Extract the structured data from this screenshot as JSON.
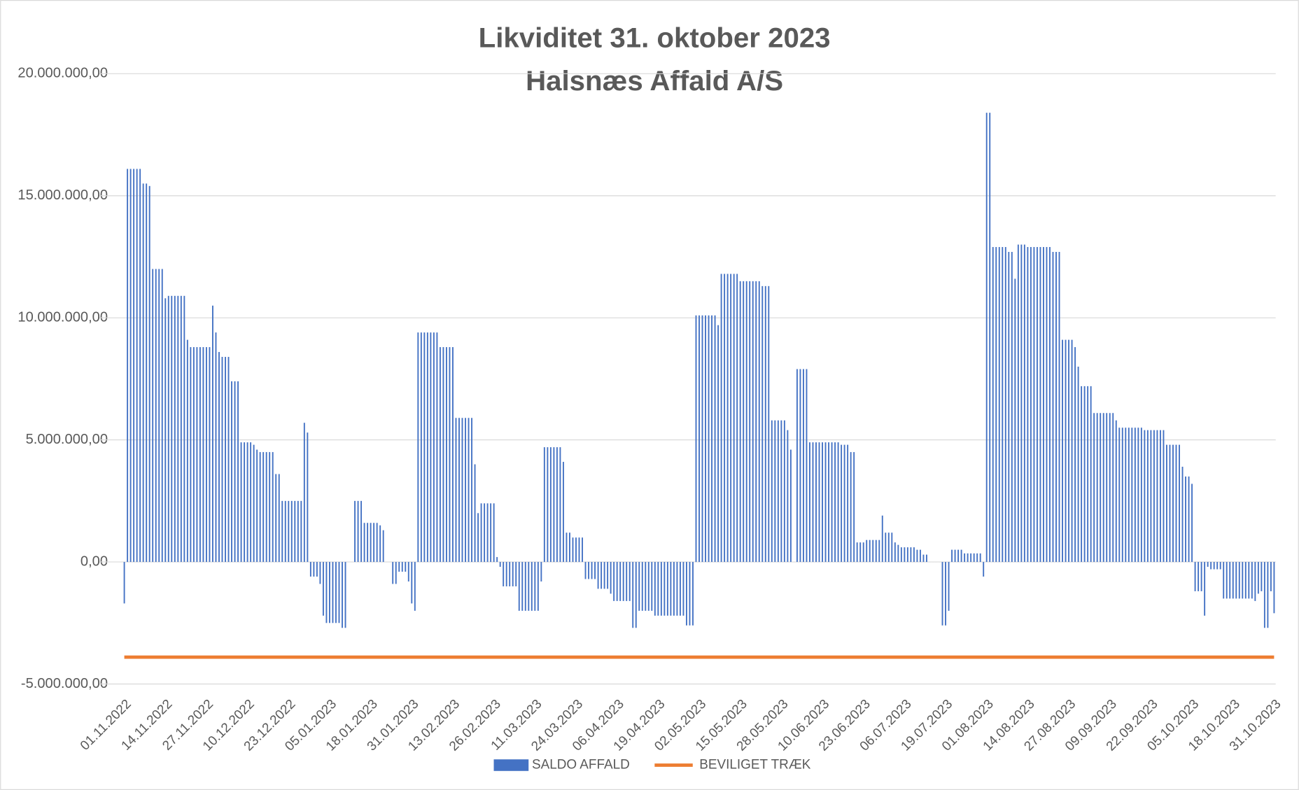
{
  "chart_data": {
    "type": "bar",
    "title": "Likviditet 31. oktober 2023",
    "subtitle": "Halsnæs Affald A/S",
    "categories": [
      "01.11.2022",
      null,
      null,
      null,
      null,
      null,
      null,
      null,
      null,
      null,
      null,
      null,
      null,
      "14.11.2022",
      null,
      null,
      null,
      null,
      null,
      null,
      null,
      null,
      null,
      null,
      null,
      null,
      "27.11.2022",
      null,
      null,
      null,
      null,
      null,
      null,
      null,
      null,
      null,
      null,
      null,
      null,
      "10.12.2022",
      null,
      null,
      null,
      null,
      null,
      null,
      null,
      null,
      null,
      null,
      null,
      null,
      "23.12.2022",
      null,
      null,
      null,
      null,
      null,
      null,
      null,
      null,
      null,
      null,
      null,
      null,
      "05.01.2023",
      null,
      null,
      null,
      null,
      null,
      null,
      null,
      null,
      null,
      null,
      null,
      null,
      "18.01.2023",
      null,
      null,
      null,
      null,
      null,
      null,
      null,
      null,
      null,
      null,
      null,
      null,
      "31.01.2023",
      null,
      null,
      null,
      null,
      null,
      null,
      null,
      null,
      null,
      null,
      null,
      null,
      "13.02.2023",
      null,
      null,
      null,
      null,
      null,
      null,
      null,
      null,
      null,
      null,
      null,
      null,
      "26.02.2023",
      null,
      null,
      null,
      null,
      null,
      null,
      null,
      null,
      null,
      null,
      null,
      null,
      "11.03.2023",
      null,
      null,
      null,
      null,
      null,
      null,
      null,
      null,
      null,
      null,
      null,
      null,
      "24.03.2023",
      null,
      null,
      null,
      null,
      null,
      null,
      null,
      null,
      null,
      null,
      null,
      null,
      "06.04.2023",
      null,
      null,
      null,
      null,
      null,
      null,
      null,
      null,
      null,
      null,
      null,
      null,
      "19.04.2023",
      null,
      null,
      null,
      null,
      null,
      null,
      null,
      null,
      null,
      null,
      null,
      null,
      "02.05.2023",
      null,
      null,
      null,
      null,
      null,
      null,
      null,
      null,
      null,
      null,
      null,
      null,
      "15.05.2023",
      null,
      null,
      null,
      null,
      null,
      null,
      null,
      null,
      null,
      null,
      null,
      null,
      "28.05.2023",
      null,
      null,
      null,
      null,
      null,
      null,
      null,
      null,
      null,
      null,
      null,
      null,
      "10.06.2023",
      null,
      null,
      null,
      null,
      null,
      null,
      null,
      null,
      null,
      null,
      null,
      null,
      "23.06.2023",
      null,
      null,
      null,
      null,
      null,
      null,
      null,
      null,
      null,
      null,
      null,
      null,
      "06.07.2023",
      null,
      null,
      null,
      null,
      null,
      null,
      null,
      null,
      null,
      null,
      null,
      null,
      "19.07.2023",
      null,
      null,
      null,
      null,
      null,
      null,
      null,
      null,
      null,
      null,
      null,
      null,
      "01.08.2023",
      null,
      null,
      null,
      null,
      null,
      null,
      null,
      null,
      null,
      null,
      null,
      null,
      "14.08.2023",
      null,
      null,
      null,
      null,
      null,
      null,
      null,
      null,
      null,
      null,
      null,
      null,
      "27.08.2023",
      null,
      null,
      null,
      null,
      null,
      null,
      null,
      null,
      null,
      null,
      null,
      null,
      "09.09.2023",
      null,
      null,
      null,
      null,
      null,
      null,
      null,
      null,
      null,
      null,
      null,
      null,
      "22.09.2023",
      null,
      null,
      null,
      null,
      null,
      null,
      null,
      null,
      null,
      null,
      null,
      null,
      "05.10.2023",
      null,
      null,
      null,
      null,
      null,
      null,
      null,
      null,
      null,
      null,
      null,
      null,
      "18.10.2023",
      null,
      null,
      null,
      null,
      null,
      null,
      null,
      null,
      null,
      null,
      null,
      null,
      "31.10.2023"
    ],
    "series": [
      {
        "name": "SALDO AFFALD",
        "color": "#4472c4",
        "values": [
          -1700000,
          16100000,
          16100000,
          16100000,
          16100000,
          16100000,
          15500000,
          15500000,
          15400000,
          12000000,
          12000000,
          12000000,
          12000000,
          10800000,
          10900000,
          10900000,
          10900000,
          10900000,
          10900000,
          10900000,
          9100000,
          8800000,
          8800000,
          8800000,
          8800000,
          8800000,
          8800000,
          8800000,
          10500000,
          9400000,
          8600000,
          8400000,
          8400000,
          8400000,
          7400000,
          7400000,
          7400000,
          4900000,
          4900000,
          4900000,
          4900000,
          4800000,
          4600000,
          4500000,
          4500000,
          4500000,
          4500000,
          4500000,
          3600000,
          3600000,
          2500000,
          2500000,
          2500000,
          2500000,
          2500000,
          2500000,
          2500000,
          5700000,
          5300000,
          -600000,
          -600000,
          -600000,
          -900000,
          -2200000,
          -2500000,
          -2500000,
          -2500000,
          -2500000,
          -2500000,
          -2700000,
          -2700000,
          0,
          0,
          2500000,
          2500000,
          2500000,
          1600000,
          1600000,
          1600000,
          1600000,
          1600000,
          1500000,
          1300000,
          0,
          0,
          -900000,
          -900000,
          -400000,
          -400000,
          -400000,
          -800000,
          -1700000,
          -2000000,
          9400000,
          9400000,
          9400000,
          9400000,
          9400000,
          9400000,
          9400000,
          8800000,
          8800000,
          8800000,
          8800000,
          8800000,
          5900000,
          5900000,
          5900000,
          5900000,
          5900000,
          5900000,
          4000000,
          2000000,
          2400000,
          2400000,
          2400000,
          2400000,
          2400000,
          200000,
          -200000,
          -1000000,
          -1000000,
          -1000000,
          -1000000,
          -1000000,
          -2000000,
          -2000000,
          -2000000,
          -2000000,
          -2000000,
          -2000000,
          -2000000,
          -800000,
          4700000,
          4700000,
          4700000,
          4700000,
          4700000,
          4700000,
          4100000,
          1200000,
          1200000,
          1000000,
          1000000,
          1000000,
          1000000,
          -700000,
          -700000,
          -700000,
          -700000,
          -1100000,
          -1100000,
          -1100000,
          -1100000,
          -1300000,
          -1600000,
          -1600000,
          -1600000,
          -1600000,
          -1600000,
          -1600000,
          -2700000,
          -2700000,
          -2000000,
          -2000000,
          -2000000,
          -2000000,
          -2000000,
          -2200000,
          -2200000,
          -2200000,
          -2200000,
          -2200000,
          -2200000,
          -2200000,
          -2200000,
          -2200000,
          -2200000,
          -2600000,
          -2600000,
          -2600000,
          10100000,
          10100000,
          10100000,
          10100000,
          10100000,
          10100000,
          10100000,
          9700000,
          11800000,
          11800000,
          11800000,
          11800000,
          11800000,
          11800000,
          11500000,
          11500000,
          11500000,
          11500000,
          11500000,
          11500000,
          11500000,
          11300000,
          11300000,
          11300000,
          5800000,
          5800000,
          5800000,
          5800000,
          5800000,
          5400000,
          4600000,
          0,
          7900000,
          7900000,
          7900000,
          7900000,
          4900000,
          4900000,
          4900000,
          4900000,
          4900000,
          4900000,
          4900000,
          4900000,
          4900000,
          4900000,
          4800000,
          4800000,
          4800000,
          4500000,
          4500000,
          800000,
          800000,
          800000,
          900000,
          900000,
          900000,
          900000,
          900000,
          1900000,
          1200000,
          1200000,
          1200000,
          800000,
          700000,
          600000,
          600000,
          600000,
          600000,
          600000,
          500000,
          500000,
          300000,
          300000,
          0,
          0,
          0,
          0,
          -2600000,
          -2600000,
          -2000000,
          500000,
          500000,
          500000,
          500000,
          350000,
          350000,
          350000,
          350000,
          350000,
          350000,
          -600000,
          18400000,
          18400000,
          12900000,
          12900000,
          12900000,
          12900000,
          12900000,
          12700000,
          12700000,
          11600000,
          13000000,
          13000000,
          13000000,
          12900000,
          12900000,
          12900000,
          12900000,
          12900000,
          12900000,
          12900000,
          12900000,
          12700000,
          12700000,
          12700000,
          9100000,
          9100000,
          9100000,
          9100000,
          8800000,
          8000000,
          7200000,
          7200000,
          7200000,
          7200000,
          6100000,
          6100000,
          6100000,
          6100000,
          6100000,
          6100000,
          6100000,
          5800000,
          5500000,
          5500000,
          5500000,
          5500000,
          5500000,
          5500000,
          5500000,
          5500000,
          5400000,
          5400000,
          5400000,
          5400000,
          5400000,
          5400000,
          5400000,
          4800000,
          4800000,
          4800000,
          4800000,
          4800000,
          3900000,
          3500000,
          3500000,
          3200000,
          -1200000,
          -1200000,
          -1200000,
          -2200000,
          -200000,
          -300000,
          -300000,
          -300000,
          -300000,
          -1500000,
          -1500000,
          -1500000,
          -1500000,
          -1500000,
          -1500000,
          -1500000,
          -1500000,
          -1500000,
          -1500000,
          -1600000,
          -1300000,
          -1200000,
          -2700000,
          -2700000,
          -1200000,
          -2100000
        ]
      },
      {
        "name": "BEVILIGET TRÆK",
        "type": "line",
        "color": "#ed7d31",
        "values": [
          -3900000,
          -3900000,
          -3900000,
          -3900000,
          -3900000,
          -3900000,
          -3900000,
          -3900000,
          -3900000,
          -3900000,
          -3900000,
          -3900000,
          -3900000,
          -3900000,
          -3900000,
          -3900000,
          -3900000,
          -3900000,
          -3900000,
          -3900000,
          -3900000,
          -3900000,
          -3900000,
          -3900000,
          -3900000,
          -3900000,
          -3900000,
          -3900000,
          -3900000,
          -3900000,
          -3900000,
          -3900000,
          -3900000,
          -3900000,
          -3900000,
          -3900000,
          -3900000,
          -3900000,
          -3900000,
          -3900000,
          -3900000,
          -3900000,
          -3900000,
          -3900000,
          -3900000,
          -3900000,
          -3900000,
          -3900000,
          -3900000,
          -3900000,
          -3900000,
          -3900000,
          -3900000,
          -3900000,
          -3900000,
          -3900000,
          -3900000,
          -3900000,
          -3900000,
          -3900000,
          -3900000,
          -3900000,
          -3900000,
          -3900000,
          -3900000,
          -3900000,
          -3900000,
          -3900000,
          -3900000,
          -3900000,
          -3900000,
          -3900000,
          -3900000,
          -3900000,
          -3900000,
          -3900000,
          -3900000,
          -3900000,
          -3900000,
          -3900000,
          -3900000,
          -3900000,
          -3900000,
          -3900000,
          -3900000,
          -3900000,
          -3900000,
          -3900000,
          -3900000,
          -3900000,
          -3900000,
          -3900000,
          -3900000,
          -3900000,
          -3900000,
          -3900000,
          -3900000,
          -3900000,
          -3900000,
          -3900000,
          -3900000,
          -3900000,
          -3900000,
          -3900000,
          -3900000,
          -3900000,
          -3900000,
          -3900000,
          -3900000,
          -3900000,
          -3900000,
          -3900000,
          -3900000,
          -3900000,
          -3900000,
          -3900000,
          -3900000,
          -3900000,
          -3900000,
          -3900000,
          -3900000,
          -3900000,
          -3900000,
          -3900000,
          -3900000,
          -3900000,
          -3900000,
          -3900000,
          -3900000,
          -3900000,
          -3900000,
          -3900000,
          -3900000,
          -3900000,
          -3900000,
          -3900000,
          -3900000,
          -3900000,
          -3900000,
          -3900000,
          -3900000,
          -3900000,
          -3900000,
          -3900000,
          -3900000,
          -3900000,
          -3900000,
          -3900000,
          -3900000,
          -3900000,
          -3900000,
          -3900000,
          -3900000,
          -3900000,
          -3900000,
          -3900000,
          -3900000,
          -3900000,
          -3900000,
          -3900000,
          -3900000,
          -3900000,
          -3900000,
          -3900000,
          -3900000,
          -3900000,
          -3900000,
          -3900000,
          -3900000,
          -3900000,
          -3900000,
          -3900000,
          -3900000,
          -3900000,
          -3900000,
          -3900000,
          -3900000,
          -3900000,
          -3900000,
          -3900000,
          -3900000,
          -3900000,
          -3900000,
          -3900000,
          -3900000,
          -3900000,
          -3900000,
          -3900000,
          -3900000,
          -3900000,
          -3900000,
          -3900000,
          -3900000,
          -3900000,
          -3900000,
          -3900000,
          -3900000,
          -3900000,
          -3900000,
          -3900000,
          -3900000,
          -3900000,
          -3900000,
          -3900000,
          -3900000,
          -3900000,
          -3900000,
          -3900000,
          -3900000,
          -3900000,
          -3900000,
          -3900000,
          -3900000,
          -3900000,
          -3900000,
          -3900000,
          -3900000,
          -3900000,
          -3900000,
          -3900000,
          -3900000,
          -3900000,
          -3900000,
          -3900000,
          -3900000,
          -3900000,
          -3900000,
          -3900000,
          -3900000,
          -3900000,
          -3900000,
          -3900000,
          -3900000,
          -3900000,
          -3900000,
          -3900000,
          -3900000,
          -3900000,
          -3900000,
          -3900000,
          -3900000,
          -3900000,
          -3900000,
          -3900000,
          -3900000,
          -3900000,
          -3900000,
          -3900000,
          -3900000,
          -3900000,
          -3900000,
          -3900000,
          -3900000,
          -3900000,
          -3900000,
          -3900000,
          -3900000,
          -3900000,
          -3900000,
          -3900000,
          -3900000,
          -3900000,
          -3900000,
          -3900000,
          -3900000,
          -3900000,
          -3900000,
          -3900000,
          -3900000,
          -3900000,
          -3900000,
          -3900000,
          -3900000,
          -3900000,
          -3900000,
          -3900000,
          -3900000,
          -3900000,
          -3900000,
          -3900000,
          -3900000,
          -3900000,
          -3900000,
          -3900000,
          -3900000,
          -3900000,
          -3900000,
          -3900000,
          -3900000,
          -3900000,
          -3900000,
          -3900000,
          -3900000,
          -3900000,
          -3900000,
          -3900000,
          -3900000,
          -3900000,
          -3900000,
          -3900000,
          -3900000,
          -3900000,
          -3900000,
          -3900000,
          -3900000,
          -3900000,
          -3900000,
          -3900000,
          -3900000,
          -3900000,
          -3900000,
          -3900000,
          -3900000,
          -3900000,
          -3900000,
          -3900000,
          -3900000,
          -3900000,
          -3900000,
          -3900000,
          -3900000,
          -3900000,
          -3900000,
          -3900000,
          -3900000,
          -3900000,
          -3900000,
          -3900000,
          -3900000,
          -3900000,
          -3900000,
          -3900000,
          -3900000,
          -3900000,
          -3900000,
          -3900000,
          -3900000,
          -3900000,
          -3900000,
          -3900000,
          -3900000,
          -3900000,
          -3900000,
          -3900000,
          -3900000,
          -3900000,
          -3900000,
          -3900000,
          -3900000,
          -3900000,
          -3900000,
          -3900000,
          -3900000,
          -3900000,
          -3900000,
          -3900000,
          -3900000,
          -3900000,
          -3900000,
          -3900000,
          -3900000,
          -3900000,
          -3900000,
          -3900000,
          -3900000
        ]
      }
    ],
    "ylim": [
      -5000000,
      20000000
    ],
    "yticks": [
      {
        "value": -5000000,
        "label": "-5.000.000,00"
      },
      {
        "value": 0,
        "label": "0,00"
      },
      {
        "value": 5000000,
        "label": "5.000.000,00"
      },
      {
        "value": 10000000,
        "label": "10.000.000,00"
      },
      {
        "value": 15000000,
        "label": "15.000.000,00"
      },
      {
        "value": 20000000,
        "label": "20.000.000,00"
      }
    ],
    "grid": true,
    "legend": "bottom"
  }
}
